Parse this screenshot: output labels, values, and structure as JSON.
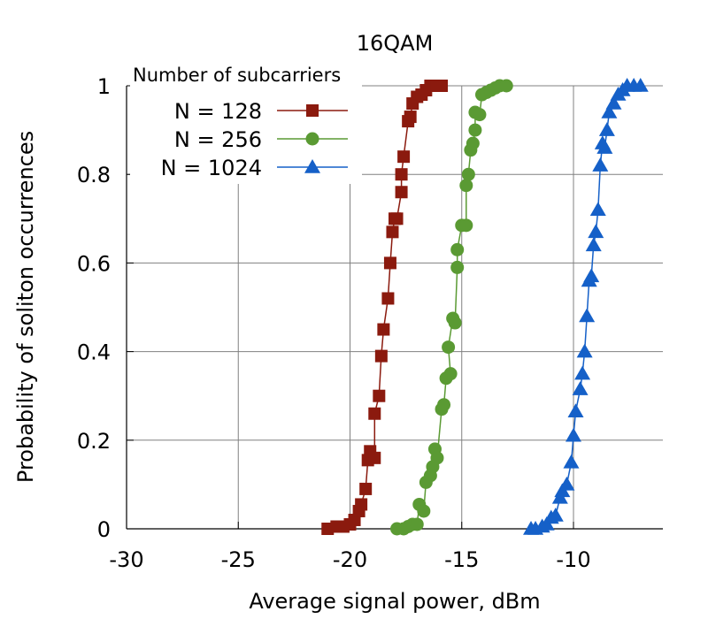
{
  "chart_data": {
    "type": "line",
    "title": "16QAM",
    "xlabel": "Average signal power, dBm",
    "ylabel": "Probability of soliton occurrences",
    "xlim": [
      -30,
      -6
    ],
    "ylim": [
      0,
      1
    ],
    "x_ticks": [
      -30,
      -25,
      -20,
      -15,
      -10
    ],
    "y_ticks": [
      0,
      0.2,
      0.4,
      0.6,
      0.8,
      1
    ],
    "x_tick_labels": [
      "-30",
      "-25",
      "-20",
      "-15",
      "-10"
    ],
    "y_tick_labels": [
      "0",
      "0.2",
      "0.4",
      "0.6",
      "0.8",
      "1"
    ],
    "grid": true,
    "legend": {
      "title": "Number of subcarriers",
      "placement": "top-left"
    },
    "series": [
      {
        "name": "N = 128",
        "color": "#8b1a0e",
        "marker": "square",
        "points": [
          [
            -21.0,
            0.0
          ],
          [
            -20.6,
            0.005
          ],
          [
            -20.3,
            0.005
          ],
          [
            -20.0,
            0.01
          ],
          [
            -19.8,
            0.02
          ],
          [
            -19.6,
            0.04
          ],
          [
            -19.5,
            0.055
          ],
          [
            -19.3,
            0.09
          ],
          [
            -19.2,
            0.155
          ],
          [
            -19.1,
            0.175
          ],
          [
            -18.9,
            0.16
          ],
          [
            -18.9,
            0.26
          ],
          [
            -18.7,
            0.3
          ],
          [
            -18.6,
            0.39
          ],
          [
            -18.5,
            0.45
          ],
          [
            -18.3,
            0.52
          ],
          [
            -18.2,
            0.6
          ],
          [
            -18.1,
            0.67
          ],
          [
            -18.0,
            0.7
          ],
          [
            -17.9,
            0.7
          ],
          [
            -17.7,
            0.76
          ],
          [
            -17.7,
            0.8
          ],
          [
            -17.6,
            0.84
          ],
          [
            -17.4,
            0.92
          ],
          [
            -17.3,
            0.93
          ],
          [
            -17.2,
            0.96
          ],
          [
            -17.0,
            0.975
          ],
          [
            -16.8,
            0.98
          ],
          [
            -16.6,
            0.99
          ],
          [
            -16.4,
            1.0
          ],
          [
            -16.1,
            1.0
          ],
          [
            -15.9,
            1.0
          ]
        ]
      },
      {
        "name": "N = 256",
        "color": "#5a9a33",
        "marker": "circle",
        "points": [
          [
            -17.9,
            0.0
          ],
          [
            -17.6,
            0.0
          ],
          [
            -17.4,
            0.005
          ],
          [
            -17.2,
            0.01
          ],
          [
            -17.0,
            0.01
          ],
          [
            -16.9,
            0.055
          ],
          [
            -16.7,
            0.04
          ],
          [
            -16.6,
            0.105
          ],
          [
            -16.4,
            0.12
          ],
          [
            -16.3,
            0.14
          ],
          [
            -16.2,
            0.18
          ],
          [
            -16.1,
            0.16
          ],
          [
            -15.9,
            0.27
          ],
          [
            -15.8,
            0.28
          ],
          [
            -15.7,
            0.34
          ],
          [
            -15.5,
            0.35
          ],
          [
            -15.6,
            0.41
          ],
          [
            -15.4,
            0.475
          ],
          [
            -15.3,
            0.465
          ],
          [
            -15.2,
            0.59
          ],
          [
            -15.2,
            0.63
          ],
          [
            -15.0,
            0.685
          ],
          [
            -14.8,
            0.685
          ],
          [
            -14.8,
            0.775
          ],
          [
            -14.7,
            0.8
          ],
          [
            -14.6,
            0.855
          ],
          [
            -14.5,
            0.87
          ],
          [
            -14.4,
            0.9
          ],
          [
            -14.4,
            0.94
          ],
          [
            -14.2,
            0.935
          ],
          [
            -14.1,
            0.98
          ],
          [
            -13.9,
            0.985
          ],
          [
            -13.7,
            0.99
          ],
          [
            -13.5,
            0.995
          ],
          [
            -13.3,
            1.0
          ],
          [
            -13.0,
            1.0
          ]
        ]
      },
      {
        "name": "N = 1024",
        "color": "#1560c8",
        "marker": "triangle",
        "points": [
          [
            -11.9,
            0.0
          ],
          [
            -11.7,
            0.0
          ],
          [
            -11.4,
            0.005
          ],
          [
            -11.2,
            0.01
          ],
          [
            -11.0,
            0.025
          ],
          [
            -10.8,
            0.03
          ],
          [
            -10.6,
            0.07
          ],
          [
            -10.5,
            0.085
          ],
          [
            -10.3,
            0.1
          ],
          [
            -10.1,
            0.15
          ],
          [
            -10.0,
            0.21
          ],
          [
            -9.9,
            0.265
          ],
          [
            -9.7,
            0.315
          ],
          [
            -9.6,
            0.35
          ],
          [
            -9.5,
            0.4
          ],
          [
            -9.4,
            0.48
          ],
          [
            -9.3,
            0.56
          ],
          [
            -9.2,
            0.57
          ],
          [
            -9.1,
            0.64
          ],
          [
            -9.0,
            0.67
          ],
          [
            -8.9,
            0.72
          ],
          [
            -8.8,
            0.82
          ],
          [
            -8.7,
            0.87
          ],
          [
            -8.6,
            0.86
          ],
          [
            -8.5,
            0.9
          ],
          [
            -8.4,
            0.94
          ],
          [
            -8.2,
            0.96
          ],
          [
            -8.0,
            0.98
          ],
          [
            -7.8,
            0.99
          ],
          [
            -7.6,
            1.0
          ],
          [
            -7.3,
            1.0
          ],
          [
            -7.0,
            1.0
          ]
        ]
      }
    ]
  },
  "colors": {
    "grid": "#808080",
    "axis": "#000000",
    "background": "#ffffff"
  }
}
